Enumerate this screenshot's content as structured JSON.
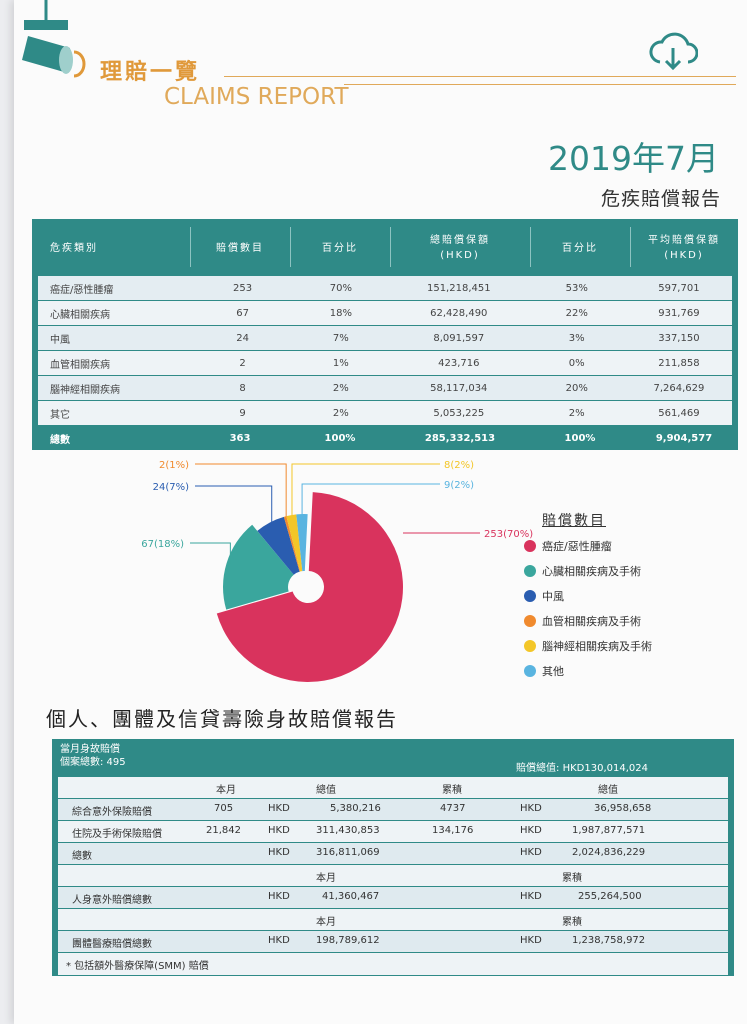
{
  "header": {
    "title_zh": "理賠一覽",
    "title_en": "CLAIMS REPORT",
    "cloud_icon": "cloud-download-icon",
    "accent": "#e0993a"
  },
  "date": "2019年7月",
  "report_title": "危疾賠償報告",
  "table1": {
    "headers": [
      "危疾類別",
      "賠償數目",
      "百分比",
      "總賠償保額\n(HKD)",
      "百分比",
      "平均賠償保額\n(HKD)"
    ],
    "rows": [
      [
        "癌症/惡性腫瘤",
        "253",
        "70%",
        "151,218,451",
        "53%",
        "597,701"
      ],
      [
        "心臟相關疾病",
        "67",
        "18%",
        "62,428,490",
        "22%",
        "931,769"
      ],
      [
        "中風",
        "24",
        "7%",
        "8,091,597",
        "3%",
        "337,150"
      ],
      [
        "血管相關疾病",
        "2",
        "1%",
        "423,716",
        "0%",
        "211,858"
      ],
      [
        "腦神經相關疾病",
        "8",
        "2%",
        "58,117,034",
        "20%",
        "7,264,629"
      ],
      [
        "其它",
        "9",
        "2%",
        "5,053,225",
        "2%",
        "561,469"
      ]
    ],
    "total": [
      "總數",
      "363",
      "100%",
      "285,332,513",
      "100%",
      "9,904,577"
    ]
  },
  "chart_data": {
    "type": "pie",
    "title": "賠償數目",
    "slices": [
      {
        "name": "癌症/惡性腫瘤",
        "value": 253,
        "label": "253(70%)",
        "color": "#d9335d"
      },
      {
        "name": "心臟相關疾病及手術",
        "value": 67,
        "label": "67(18%)",
        "color": "#3aa69d"
      },
      {
        "name": "中風",
        "value": 24,
        "label": "24(7%)",
        "color": "#2a5db0"
      },
      {
        "name": "血管相關疾病及手術",
        "value": 2,
        "label": "2(1%)",
        "color": "#f08a2e"
      },
      {
        "name": "腦神經相關疾病及手術",
        "value": 8,
        "label": "8(2%)",
        "color": "#f3c628"
      },
      {
        "name": "其他",
        "value": 9,
        "label": "9(2%)",
        "color": "#59b4e0"
      }
    ],
    "legend_position": "right"
  },
  "section2": {
    "title": "個人、團體及信貸壽險身故賠償報告",
    "head_left_1": "當月身故賠償",
    "head_left_2": "個案總數: 495",
    "head_right": "賠償總值: HKD130,014,024",
    "col_month": "本月",
    "col_value": "總值",
    "col_cum": "累積",
    "col_cum_value": "總值",
    "rows": [
      {
        "label": "綜合意外保險賠償",
        "month": "705",
        "cur1": "HKD",
        "val1": "5,380,216",
        "cum": "4737",
        "cur2": "HKD",
        "val2": "36,958,658"
      },
      {
        "label": "住院及手術保險賠償",
        "month": "21,842",
        "cur1": "HKD",
        "val1": "311,430,853",
        "cum": "134,176",
        "cur2": "HKD",
        "val2": "1,987,877,571"
      },
      {
        "label": "總數",
        "month": "",
        "cur1": "HKD",
        "val1": "316,811,069",
        "cum": "",
        "cur2": "HKD",
        "val2": "2,024,836,229"
      }
    ],
    "acc_month": "本月",
    "acc_cum": "累積",
    "acc_label": "人身意外賠償總數",
    "acc_cur1": "HKD",
    "acc_val1": "41,360,467",
    "acc_cur2": "HKD",
    "acc_val2": "255,264,500",
    "med_month": "本月",
    "med_cum": "累積",
    "med_label": "團體醫療賠償總數",
    "med_cur1": "HKD",
    "med_val1": "198,789,612",
    "med_cur2": "HKD",
    "med_val2": "1,238,758,972",
    "note": "* 包括額外醫療保障(SMM) 賠償"
  }
}
